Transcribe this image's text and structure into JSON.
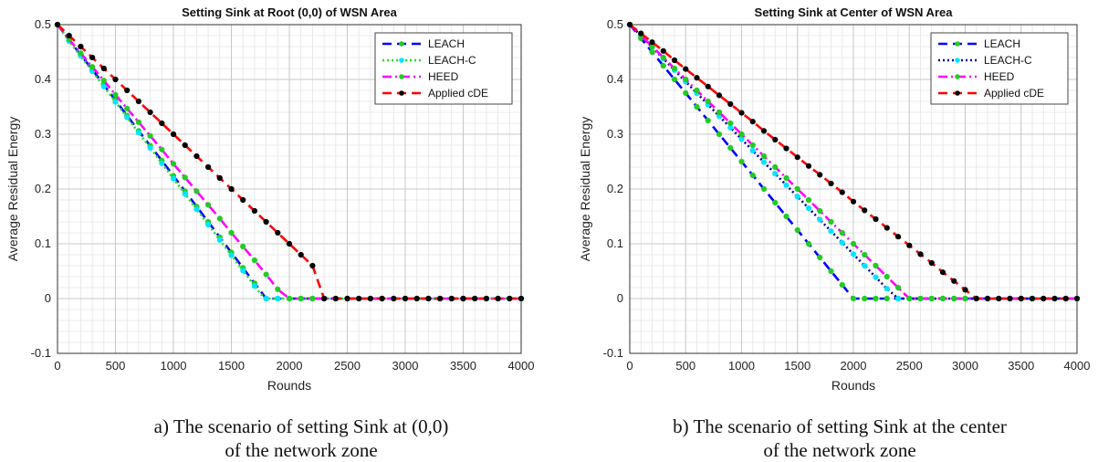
{
  "chart_data": [
    {
      "type": "line",
      "title": "Setting Sink at Root (0,0) of WSN Area",
      "xlabel": "Rounds",
      "ylabel": "Average Residual Energy",
      "xlim": [
        0,
        4000
      ],
      "ylim": [
        -0.1,
        0.5
      ],
      "xticks": [
        "0",
        "500",
        "1000",
        "1500",
        "2000",
        "2500",
        "3000",
        "3500",
        "4000"
      ],
      "yticks": [
        "-0.1",
        "0",
        "0.1",
        "0.2",
        "0.3",
        "0.4",
        "0.5"
      ],
      "grid": true,
      "legend_position": "top-right",
      "series": [
        {
          "name": "LEACH",
          "color": "#0000ff",
          "dash": "dash",
          "marker_color": "#22cc22",
          "x": [
            0,
            100,
            200,
            300,
            400,
            500,
            600,
            700,
            800,
            900,
            1000,
            1100,
            1200,
            1300,
            1400,
            1500,
            1600,
            1700,
            1800,
            1850
          ],
          "y": [
            0.5,
            0.472,
            0.445,
            0.418,
            0.39,
            0.362,
            0.334,
            0.306,
            0.279,
            0.252,
            0.224,
            0.196,
            0.168,
            0.14,
            0.112,
            0.084,
            0.056,
            0.028,
            0.0,
            0.0
          ]
        },
        {
          "name": "LEACH-C",
          "color": "#22dd22",
          "dash": "dot",
          "marker_color": "#00e5ff",
          "x": [
            0,
            100,
            200,
            300,
            400,
            500,
            600,
            700,
            800,
            900,
            1000,
            1100,
            1200,
            1300,
            1400,
            1500,
            1600,
            1700,
            1750,
            1800
          ],
          "y": [
            0.5,
            0.47,
            0.443,
            0.415,
            0.387,
            0.359,
            0.331,
            0.303,
            0.275,
            0.247,
            0.219,
            0.191,
            0.163,
            0.135,
            0.107,
            0.079,
            0.051,
            0.023,
            0.009,
            0.0
          ]
        },
        {
          "name": "HEED",
          "color": "#ff00ff",
          "dash": "dashdot",
          "marker_color": "#22cc22",
          "x": [
            0,
            100,
            200,
            300,
            400,
            500,
            600,
            700,
            800,
            900,
            1000,
            1100,
            1200,
            1300,
            1400,
            1500,
            1600,
            1700,
            1800,
            1900,
            2000
          ],
          "y": [
            0.5,
            0.473,
            0.448,
            0.423,
            0.398,
            0.372,
            0.347,
            0.322,
            0.297,
            0.272,
            0.246,
            0.221,
            0.196,
            0.171,
            0.146,
            0.12,
            0.095,
            0.07,
            0.044,
            0.017,
            0.0
          ]
        },
        {
          "name": "Applied cDE",
          "color": "#ff0000",
          "dash": "dash",
          "marker_color": "#000000",
          "x": [
            0,
            100,
            200,
            300,
            400,
            500,
            600,
            700,
            800,
            900,
            1000,
            1100,
            1200,
            1300,
            1400,
            1500,
            1600,
            1700,
            1800,
            1900,
            2000,
            2100,
            2200,
            2300
          ],
          "y": [
            0.5,
            0.48,
            0.46,
            0.44,
            0.42,
            0.4,
            0.38,
            0.36,
            0.34,
            0.32,
            0.3,
            0.28,
            0.26,
            0.24,
            0.22,
            0.2,
            0.18,
            0.16,
            0.14,
            0.12,
            0.1,
            0.08,
            0.06,
            0.0
          ]
        }
      ]
    },
    {
      "type": "line",
      "title": "Setting Sink at Center of WSN Area",
      "xlabel": "Rounds",
      "ylabel": "Average Residual Energy",
      "xlim": [
        0,
        4000
      ],
      "ylim": [
        -0.1,
        0.5
      ],
      "xticks": [
        "0",
        "500",
        "1000",
        "1500",
        "2000",
        "2500",
        "3000",
        "3500",
        "4000"
      ],
      "yticks": [
        "-0.1",
        "0",
        "0.1",
        "0.2",
        "0.3",
        "0.4",
        "0.5"
      ],
      "grid": true,
      "legend_position": "top-right",
      "series": [
        {
          "name": "LEACH",
          "color": "#0000ff",
          "dash": "dash",
          "marker_color": "#22cc22",
          "x": [
            0,
            100,
            200,
            300,
            400,
            500,
            600,
            700,
            800,
            900,
            1000,
            1100,
            1200,
            1300,
            1400,
            1500,
            1600,
            1700,
            1800,
            1900,
            2000
          ],
          "y": [
            0.5,
            0.475,
            0.45,
            0.425,
            0.4,
            0.375,
            0.35,
            0.325,
            0.3,
            0.275,
            0.25,
            0.225,
            0.2,
            0.175,
            0.15,
            0.125,
            0.1,
            0.075,
            0.05,
            0.025,
            0.0
          ]
        },
        {
          "name": "LEACH-C",
          "color": "#00009f",
          "dash": "dot",
          "marker_color": "#00e5ff",
          "x": [
            0,
            100,
            200,
            300,
            400,
            500,
            600,
            700,
            800,
            900,
            1000,
            1100,
            1200,
            1300,
            1400,
            1500,
            1600,
            1700,
            1800,
            1900,
            2000,
            2100,
            2200,
            2300,
            2400
          ],
          "y": [
            0.5,
            0.48,
            0.459,
            0.438,
            0.417,
            0.396,
            0.375,
            0.354,
            0.333,
            0.312,
            0.291,
            0.27,
            0.249,
            0.228,
            0.207,
            0.186,
            0.165,
            0.144,
            0.123,
            0.102,
            0.081,
            0.06,
            0.039,
            0.018,
            0.0
          ]
        },
        {
          "name": "HEED",
          "color": "#ff00ff",
          "dash": "dashdot",
          "marker_color": "#22cc22",
          "x": [
            0,
            100,
            200,
            300,
            400,
            500,
            600,
            700,
            800,
            900,
            1000,
            1100,
            1200,
            1300,
            1400,
            1500,
            1600,
            1700,
            1800,
            1900,
            2000,
            2100,
            2200,
            2300,
            2400,
            2500
          ],
          "y": [
            0.5,
            0.48,
            0.46,
            0.44,
            0.42,
            0.4,
            0.38,
            0.36,
            0.34,
            0.32,
            0.3,
            0.28,
            0.26,
            0.24,
            0.22,
            0.2,
            0.18,
            0.16,
            0.14,
            0.12,
            0.1,
            0.08,
            0.06,
            0.04,
            0.02,
            0.0
          ]
        },
        {
          "name": "Applied cDE",
          "color": "#ff0000",
          "dash": "dash",
          "marker_color": "#000000",
          "x": [
            0,
            100,
            200,
            300,
            400,
            500,
            600,
            700,
            800,
            900,
            1000,
            1100,
            1200,
            1300,
            1400,
            1500,
            1600,
            1700,
            1800,
            1900,
            2000,
            2100,
            2200,
            2300,
            2400,
            2500,
            2600,
            2700,
            2800,
            2900,
            3000,
            3100
          ],
          "y": [
            0.5,
            0.484,
            0.468,
            0.452,
            0.435,
            0.419,
            0.403,
            0.387,
            0.371,
            0.355,
            0.339,
            0.323,
            0.306,
            0.29,
            0.274,
            0.258,
            0.242,
            0.226,
            0.21,
            0.194,
            0.177,
            0.161,
            0.145,
            0.129,
            0.113,
            0.097,
            0.081,
            0.065,
            0.048,
            0.032,
            0.016,
            0.0
          ]
        }
      ]
    }
  ],
  "captions": [
    {
      "line1": "a) The scenario of setting Sink at (0,0)",
      "line2": "of the network zone"
    },
    {
      "line1": "b) The scenario of setting Sink at the center",
      "line2": "of the network zone"
    }
  ]
}
